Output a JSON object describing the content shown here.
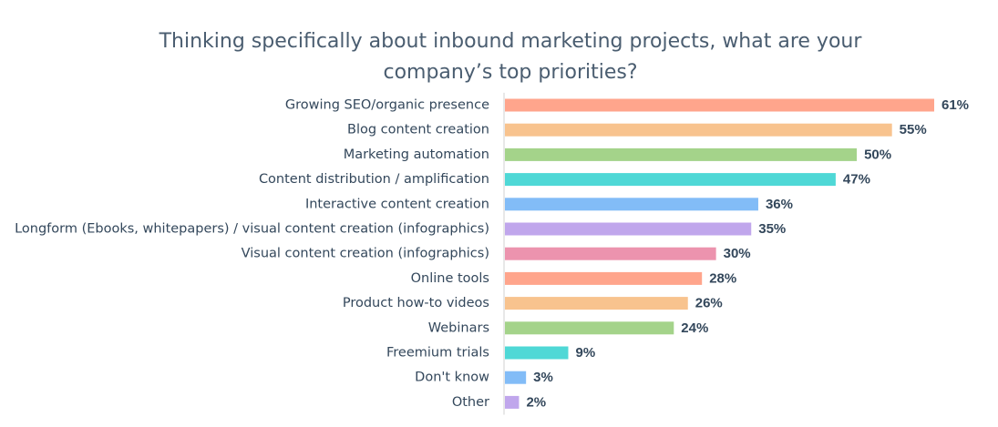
{
  "chart_data": {
    "type": "bar",
    "orientation": "horizontal",
    "title_lines": [
      "Thinking specifically about inbound marketing projects, what are your",
      "company’s top priorities?"
    ],
    "categories": [
      "Growing SEO/organic presence",
      "Blog content creation",
      "Marketing automation",
      "Content distribution / amplification",
      "Interactive content creation",
      "Longform (Ebooks, whitepapers) / visual content creation (infographics)",
      "Visual content creation (infographics)",
      "Online tools",
      "Product how-to videos",
      "Webinars",
      "Freemium trials",
      "Don't know",
      "Other"
    ],
    "values": [
      61,
      55,
      50,
      47,
      36,
      35,
      30,
      28,
      26,
      24,
      9,
      3,
      2
    ],
    "value_labels": [
      "61%",
      "55%",
      "50%",
      "47%",
      "36%",
      "35%",
      "30%",
      "28%",
      "26%",
      "24%",
      "9%",
      "3%",
      "2%"
    ],
    "unit": "%",
    "xlim": [
      0,
      61
    ],
    "grid": false,
    "legend": "none",
    "colors": [
      "#ffa58c",
      "#f8c38e",
      "#a4d38a",
      "#4fd8d6",
      "#82bcf7",
      "#c0a6ec",
      "#ec93ae"
    ]
  }
}
